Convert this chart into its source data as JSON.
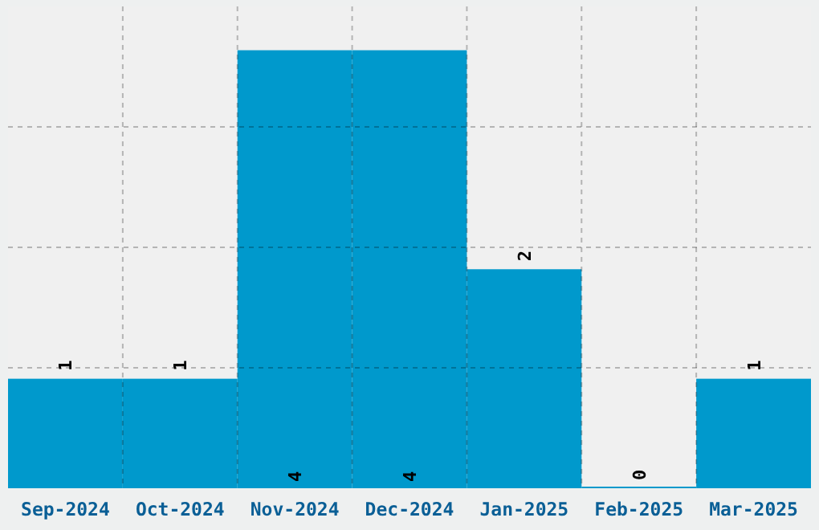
{
  "chart_data": {
    "type": "bar",
    "categories": [
      "Sep-2024",
      "Oct-2024",
      "Nov-2024",
      "Dec-2024",
      "Jan-2025",
      "Feb-2025",
      "Mar-2025"
    ],
    "values": [
      1,
      1,
      4,
      4,
      2,
      0,
      1
    ],
    "color": "#0099cc",
    "ylim": [
      0,
      4.4
    ],
    "yticks": [
      {
        "value": 1.1,
        "label": null
      },
      {
        "value": 2.2,
        "label": null
      },
      {
        "value": 3.3,
        "label": null
      }
    ],
    "tick_labels": "x",
    "grid": true,
    "data_labels": true
  }
}
